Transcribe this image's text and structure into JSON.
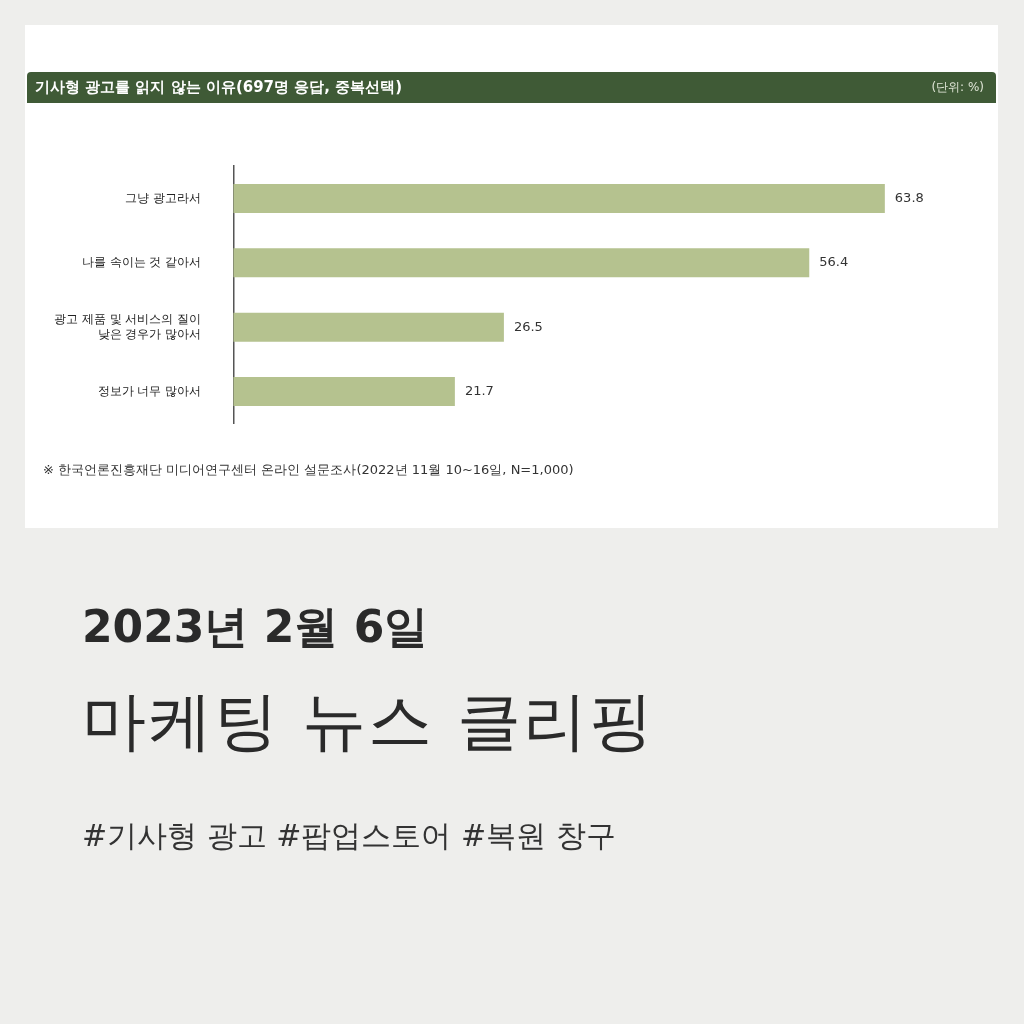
{
  "chart_data": {
    "type": "bar",
    "orientation": "horizontal",
    "tick_labels": "y",
    "title": "기사형 광고를 읽지 않는 이유(697명 응답, 중복선택)",
    "subtitle": "(단위: %)",
    "categories": [
      "그냥 광고라서",
      "나를 속이는 것 같아서",
      "광고 제품 및 서비스의 질이\n낮은 경우가 많아서",
      "정보가 너무 많아서"
    ],
    "values": [
      63.8,
      56.4,
      26.5,
      21.7
    ],
    "color": "#b5c28f",
    "data_labels": true,
    "legend": false,
    "annotations": [
      "※ 한국언론진흥재단 미디어연구센터 온라인 설문조사(2022년 11월 10~16일, N=1,000)",
      "2023년 2월 6일",
      "마케팅 뉴스 클리핑",
      "#기사형 광고 #팝업스토어 #복원 창구"
    ]
  }
}
